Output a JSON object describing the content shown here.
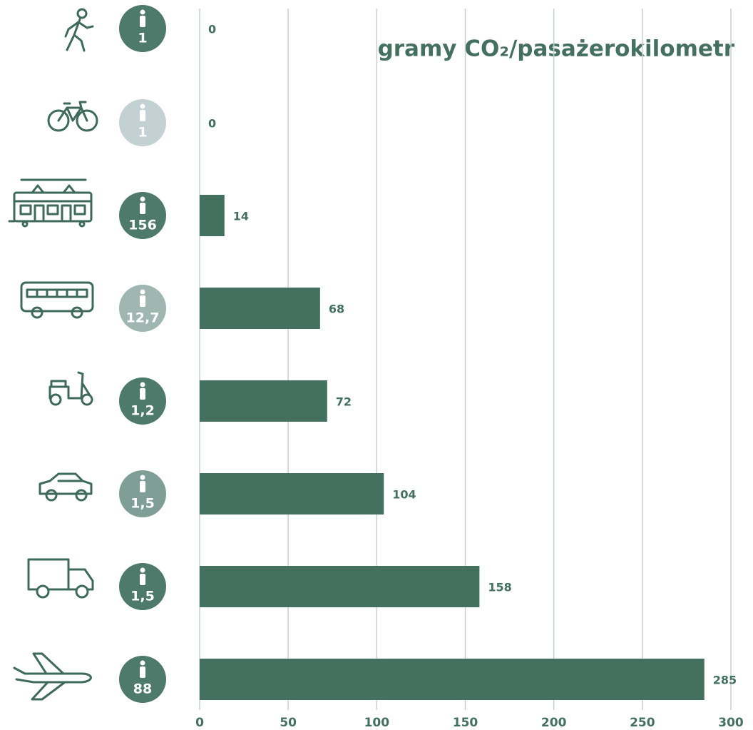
{
  "chart_data": {
    "type": "bar",
    "orientation": "horizontal",
    "title": "gramy CO₂/pasażerokilometr",
    "categories": [
      null,
      null,
      null,
      null,
      null,
      null,
      null,
      null
    ],
    "values": [
      0,
      0,
      14,
      68,
      72,
      104,
      158,
      285
    ],
    "occupancy": [
      "1",
      "1",
      "156",
      "12,7",
      "1,2",
      "1,5",
      "1,5",
      "88"
    ],
    "occupancy_colors": [
      "#4d7a6a",
      "#c3d0d4",
      "#4d7a6a",
      "#9fb6b1",
      "#4d7a6a",
      "#7f9e96",
      "#4d7a6a",
      "#4d7a6a"
    ],
    "color": "#44705f",
    "xlim": [
      0,
      300
    ],
    "xticks": [
      0,
      50,
      100,
      150,
      200,
      250,
      300
    ],
    "grid": true
  }
}
